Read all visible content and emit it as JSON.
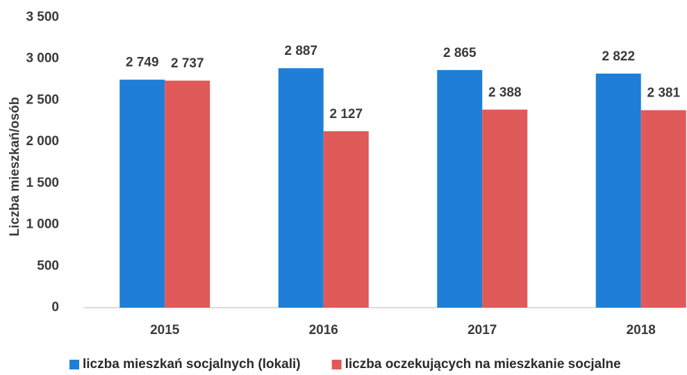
{
  "chart_data": {
    "type": "bar",
    "y_label": "Liczba mieszkań/osób",
    "categories": [
      "2015",
      "2016",
      "2017",
      "2018"
    ],
    "series": [
      {
        "name": "liczba mieszkań socjalnych (lokali)",
        "color": "#1f7fd6",
        "values": [
          2749,
          2887,
          2865,
          2822
        ],
        "value_labels": [
          "2 749",
          "2 887",
          "2 865",
          "2 822"
        ]
      },
      {
        "name": "liczba oczekujących na mieszkanie socjalne",
        "color": "#e05a5a",
        "values": [
          2737,
          2127,
          2388,
          2381
        ],
        "value_labels": [
          "2 737",
          "2 127",
          "2 388",
          "2 381"
        ]
      }
    ],
    "ylim": [
      0,
      3500
    ],
    "yticks": [
      0,
      500,
      {
        "value": 1000,
        "label": "1 000"
      },
      {
        "value": 1500,
        "label": "1 500"
      },
      {
        "value": 2000,
        "label": "2 000"
      },
      {
        "value": 2500,
        "label": "2 500"
      },
      {
        "value": 3000,
        "label": "3 000"
      },
      {
        "value": 3500,
        "label": "3 500"
      }
    ],
    "grid": false,
    "legend": "bottom"
  }
}
